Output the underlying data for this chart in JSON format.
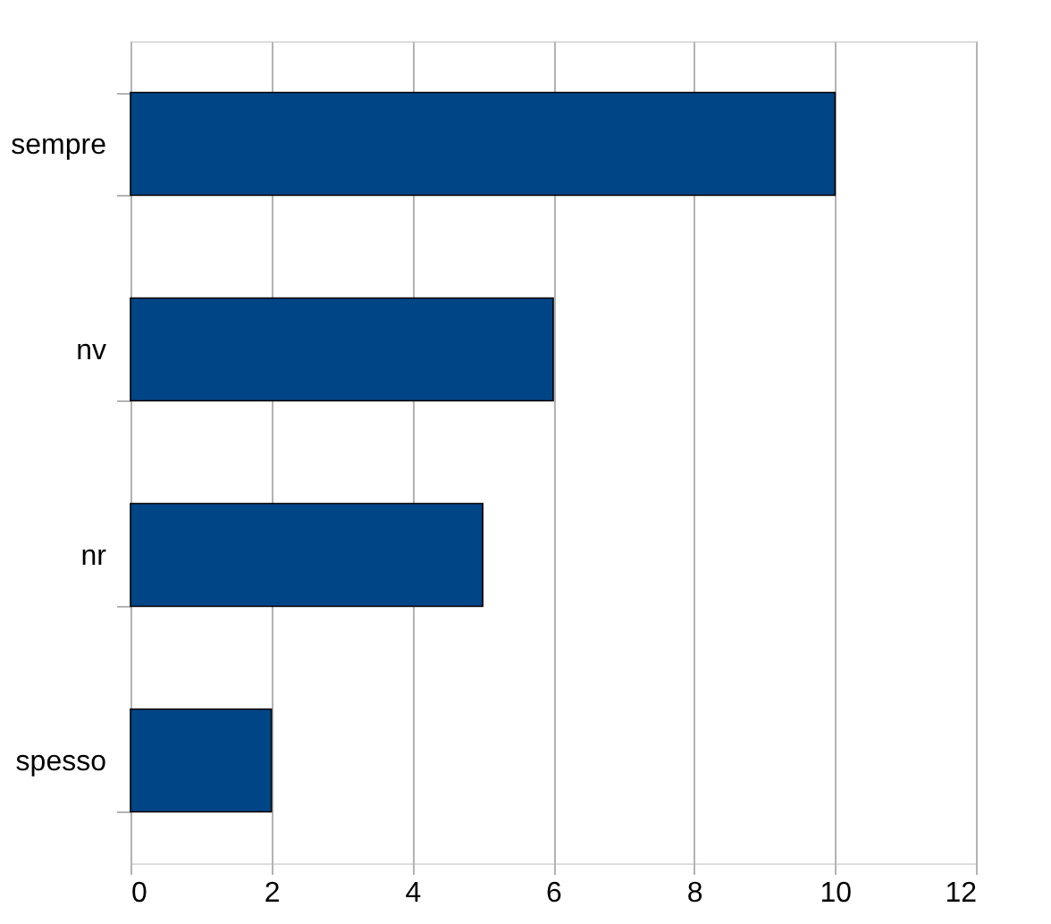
{
  "chart_data": {
    "type": "bar",
    "orientation": "horizontal",
    "categories": [
      "sempre",
      "nv",
      "nr",
      "spesso"
    ],
    "values": [
      10,
      6,
      5,
      2
    ],
    "color": "#004586",
    "xlim": [
      0,
      12
    ],
    "xticks": [
      0,
      2,
      4,
      6,
      8,
      10,
      12
    ],
    "grid": "x"
  }
}
